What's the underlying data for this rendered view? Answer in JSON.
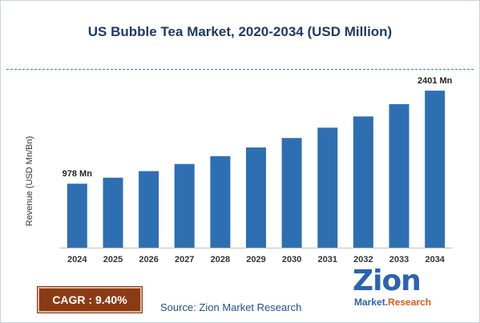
{
  "chart_data": {
    "type": "bar",
    "title": "US Bubble Tea Market, 2020-2034 (USD Million)",
    "ylabel": "Revenue (USD Mn/Bn)",
    "xlabel": "",
    "categories": [
      "2024",
      "2025",
      "2026",
      "2027",
      "2028",
      "2029",
      "2030",
      "2031",
      "2032",
      "2033",
      "2034"
    ],
    "values": [
      978,
      1070,
      1170,
      1280,
      1400,
      1532,
      1676,
      1834,
      2006,
      2195,
      2401
    ],
    "data_labels": [
      {
        "category": "2024",
        "text": "978 Mn"
      },
      {
        "category": "2034",
        "text": "2401 Mn"
      }
    ],
    "ylim": [
      0,
      2500
    ],
    "grid": false,
    "bar_color": "#2e6fb2"
  },
  "cagr": {
    "label": "CAGR : 9.40%",
    "bg_color": "#8b3b14"
  },
  "source": "Source: Zion Market Research",
  "logo": {
    "word": "Zion",
    "sub_left": "Market.",
    "sub_right": "Research"
  },
  "colors": {
    "title": "#1f3a66",
    "divider": "#3b7bc0",
    "source": "#1f4f8f"
  }
}
